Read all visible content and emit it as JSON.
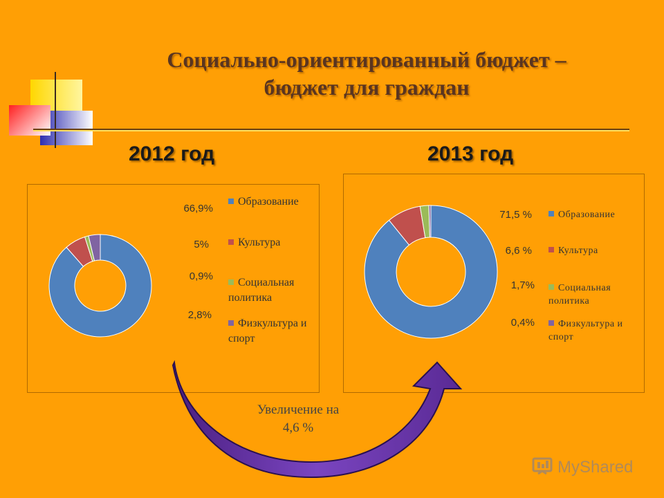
{
  "slide": {
    "title_line1": "Социально-ориентированный бюджет –",
    "title_line2": "бюджет для граждан",
    "increase_line1": "Увеличение на",
    "increase_line2": "4,6 %",
    "watermark": "MyShared"
  },
  "colors": {
    "background": "#ff9f05",
    "education": "#4f81bd",
    "culture": "#c0504d",
    "social": "#9bbb59",
    "sport": "#8064a2",
    "arrow": "#6a35a0"
  },
  "chart_data": [
    {
      "type": "pie",
      "title": "2012 год",
      "categories": [
        "Образование",
        "Культура",
        "Социальная политика",
        "Физкультура и спорт"
      ],
      "values": [
        66.9,
        5,
        0.9,
        2.8
      ],
      "value_labels": [
        "66,9%",
        "5%",
        "0,9%",
        "2,8%"
      ],
      "legend": [
        "Образование",
        "Культура",
        "Социальная политика",
        "Физкультура и спорт"
      ],
      "legend_position": "right",
      "donut": true
    },
    {
      "type": "pie",
      "title": "2013 год",
      "categories": [
        "Образование",
        "Культура",
        "Социальная политика",
        "Физкультура и спорт"
      ],
      "values": [
        71.5,
        6.6,
        1.7,
        0.4
      ],
      "value_labels": [
        "71,5 %",
        "6,6 %",
        "1,7%",
        "0,4%"
      ],
      "legend": [
        "Образование",
        "Культура",
        "Социальная политика",
        "Физкультура и спорт"
      ],
      "legend_position": "right",
      "donut": true
    }
  ]
}
